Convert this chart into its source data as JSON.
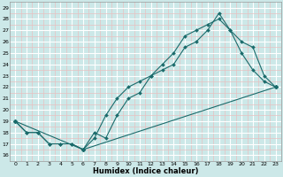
{
  "xlabel": "Humidex (Indice chaleur)",
  "xlim": [
    -0.5,
    23.5
  ],
  "ylim": [
    15.5,
    29.5
  ],
  "xticks": [
    0,
    1,
    2,
    3,
    4,
    5,
    6,
    7,
    8,
    9,
    10,
    11,
    12,
    13,
    14,
    15,
    16,
    17,
    18,
    19,
    20,
    21,
    22,
    23
  ],
  "yticks": [
    16,
    17,
    18,
    19,
    20,
    21,
    22,
    23,
    24,
    25,
    26,
    27,
    28,
    29
  ],
  "bg_color": "#cce8e8",
  "grid_major_color": "#ffffff",
  "grid_minor_color": "#e8c0c0",
  "line_color": "#1a6b6b",
  "line1_x": [
    0,
    1,
    2,
    3,
    4,
    5,
    6,
    7,
    8,
    9,
    10,
    11,
    12,
    13,
    14,
    15,
    16,
    17,
    18,
    19,
    20,
    21,
    22,
    23
  ],
  "line1_y": [
    19.0,
    18.0,
    18.0,
    17.0,
    17.0,
    17.0,
    16.5,
    18.0,
    17.5,
    19.5,
    21.0,
    21.5,
    23.0,
    23.5,
    24.0,
    25.5,
    26.0,
    27.0,
    28.5,
    27.0,
    25.0,
    23.5,
    22.5,
    22.0
  ],
  "line2_x": [
    0,
    1,
    2,
    3,
    4,
    5,
    6,
    7,
    8,
    9,
    10,
    11,
    12,
    13,
    14,
    15,
    16,
    17,
    18,
    19,
    20,
    21,
    22,
    23
  ],
  "line2_y": [
    19.0,
    18.0,
    18.0,
    17.0,
    17.0,
    17.0,
    16.5,
    17.5,
    19.5,
    21.0,
    22.0,
    22.5,
    23.0,
    24.0,
    25.0,
    26.5,
    27.0,
    27.5,
    28.0,
    27.0,
    26.0,
    25.5,
    23.0,
    22.0
  ],
  "line3_x": [
    0,
    6,
    23
  ],
  "line3_y": [
    19.0,
    16.5,
    22.0
  ]
}
